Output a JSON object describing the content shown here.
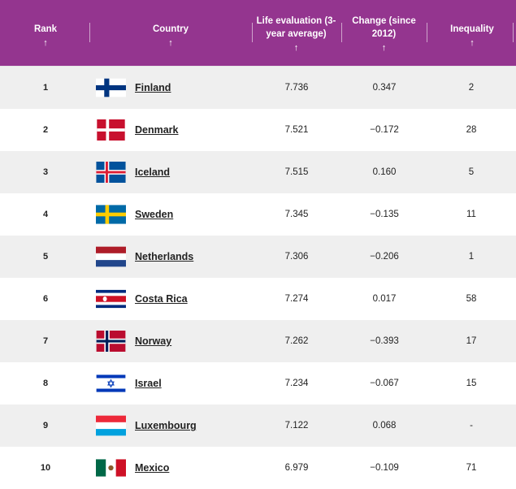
{
  "header": {
    "rank": "Rank",
    "country": "Country",
    "life_line1": "Life evaluation (3-",
    "life_line2": "year average)",
    "change_line1": "Change (since",
    "change_line2": "2012)",
    "inequality": "Inequality",
    "sort_arrow": "↑"
  },
  "rows": [
    {
      "rank": "1",
      "country": "Finland",
      "life": "7.736",
      "change": "0.347",
      "inequality": "2",
      "flag": "finland-flag-icon"
    },
    {
      "rank": "2",
      "country": "Denmark",
      "life": "7.521",
      "change": "−0.172",
      "inequality": "28",
      "flag": "denmark-flag-icon"
    },
    {
      "rank": "3",
      "country": "Iceland",
      "life": "7.515",
      "change": "0.160",
      "inequality": "5",
      "flag": "iceland-flag-icon"
    },
    {
      "rank": "4",
      "country": "Sweden",
      "life": "7.345",
      "change": "−0.135",
      "inequality": "11",
      "flag": "sweden-flag-icon"
    },
    {
      "rank": "5",
      "country": "Netherlands",
      "life": "7.306",
      "change": "−0.206",
      "inequality": "1",
      "flag": "netherlands-flag-icon"
    },
    {
      "rank": "6",
      "country": "Costa Rica",
      "life": "7.274",
      "change": "0.017",
      "inequality": "58",
      "flag": "costa-rica-flag-icon"
    },
    {
      "rank": "7",
      "country": "Norway",
      "life": "7.262",
      "change": "−0.393",
      "inequality": "17",
      "flag": "norway-flag-icon"
    },
    {
      "rank": "8",
      "country": "Israel",
      "life": "7.234",
      "change": "−0.067",
      "inequality": "15",
      "flag": "israel-flag-icon"
    },
    {
      "rank": "9",
      "country": "Luxembourg",
      "life": "7.122",
      "change": "0.068",
      "inequality": "-",
      "flag": "luxembourg-flag-icon"
    },
    {
      "rank": "10",
      "country": "Mexico",
      "life": "6.979",
      "change": "−0.109",
      "inequality": "71",
      "flag": "mexico-flag-icon"
    }
  ],
  "colors": {
    "header_bg": "#94358f",
    "row_shade": "#efefef",
    "row_white": "#ffffff"
  }
}
